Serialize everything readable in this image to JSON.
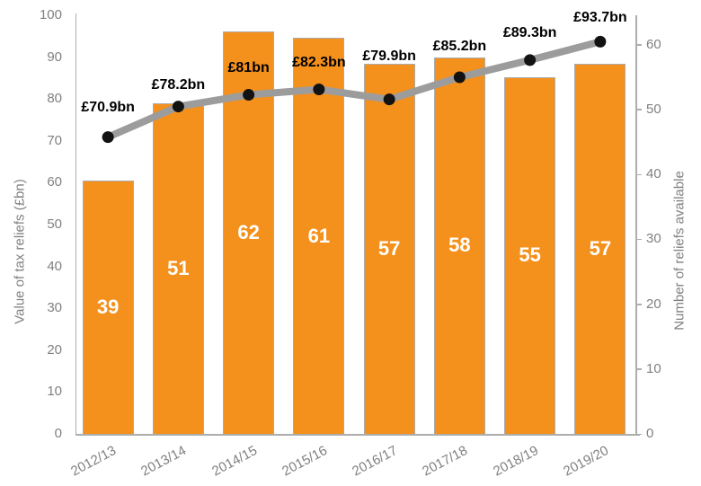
{
  "chart_data": {
    "type": "bar+line",
    "categories": [
      "2012/13",
      "2013/14",
      "2014/15",
      "2015/16",
      "2016/17",
      "2017/18",
      "2018/19",
      "2019/20"
    ],
    "series": [
      {
        "name": "Number of reliefs available",
        "type": "bar",
        "axis": "right",
        "values": [
          39,
          51,
          62,
          61,
          57,
          58,
          55,
          57
        ]
      },
      {
        "name": "Value of tax reliefs (£bn)",
        "type": "line",
        "axis": "left",
        "values": [
          70.9,
          78.2,
          81,
          82.3,
          79.9,
          85.2,
          89.3,
          93.7
        ],
        "point_labels": [
          "£70.9bn",
          "£78.2bn",
          "£81bn",
          "£82.3bn",
          "£79.9bn",
          "£85.2bn",
          "£89.3bn",
          "£93.7bn"
        ]
      }
    ],
    "left_axis": {
      "title": "Value of tax reliefs (£bn)",
      "min": 0,
      "max": 100,
      "tick_step": 10,
      "ticks": [
        0,
        10,
        20,
        30,
        40,
        50,
        60,
        70,
        80,
        90,
        100
      ]
    },
    "right_axis": {
      "title": "Number of reliefs available",
      "min": 0,
      "max": 64.5,
      "tick_step": 10,
      "ticks": [
        0,
        10,
        20,
        30,
        40,
        50,
        60
      ]
    },
    "grid": false,
    "legend": "none",
    "colors": {
      "bar_fill": "#F4911D",
      "bar_border": "#ABABAB",
      "bar_value_label": "#FFFFFF",
      "line": "#9C9C9C",
      "marker": "#121212",
      "point_label": "#000000",
      "axis_line": "#ADADAD",
      "tick_label": "#808080"
    }
  }
}
